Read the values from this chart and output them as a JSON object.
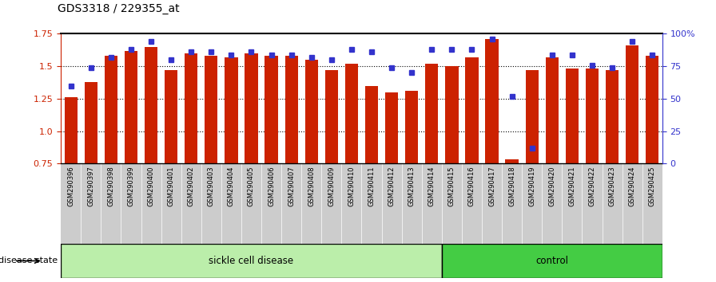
{
  "title": "GDS3318 / 229355_at",
  "samples": [
    "GSM290396",
    "GSM290397",
    "GSM290398",
    "GSM290399",
    "GSM290400",
    "GSM290401",
    "GSM290402",
    "GSM290403",
    "GSM290404",
    "GSM290405",
    "GSM290406",
    "GSM290407",
    "GSM290408",
    "GSM290409",
    "GSM290410",
    "GSM290411",
    "GSM290412",
    "GSM290413",
    "GSM290414",
    "GSM290415",
    "GSM290416",
    "GSM290417",
    "GSM290418",
    "GSM290419",
    "GSM290420",
    "GSM290421",
    "GSM290422",
    "GSM290423",
    "GSM290424",
    "GSM290425"
  ],
  "bar_values": [
    1.26,
    1.38,
    1.58,
    1.62,
    1.65,
    1.47,
    1.6,
    1.58,
    1.57,
    1.6,
    1.58,
    1.58,
    1.55,
    1.47,
    1.52,
    1.35,
    1.3,
    1.31,
    1.52,
    1.5,
    1.57,
    1.71,
    0.78,
    1.47,
    1.57,
    1.48,
    1.48,
    1.47,
    1.66,
    1.58
  ],
  "percentile_values": [
    60,
    74,
    82,
    88,
    94,
    80,
    86,
    86,
    84,
    86,
    84,
    84,
    82,
    80,
    88,
    86,
    74,
    70,
    88,
    88,
    88,
    96,
    52,
    12,
    84,
    84,
    76,
    74,
    94,
    84
  ],
  "sickle_cell_count": 19,
  "control_count": 11,
  "ylim_left": [
    0.75,
    1.75
  ],
  "ylim_right": [
    0,
    100
  ],
  "yticks_left": [
    0.75,
    1.0,
    1.25,
    1.5,
    1.75
  ],
  "yticks_right": [
    0,
    25,
    50,
    75,
    100
  ],
  "ytick_labels_right": [
    "0",
    "25",
    "50",
    "75",
    "100%"
  ],
  "bar_color": "#cc2200",
  "dot_color": "#3333cc",
  "sickle_color": "#bbeeaa",
  "control_color": "#44cc44",
  "bar_bottom": 0.75,
  "background_color": "#ffffff"
}
